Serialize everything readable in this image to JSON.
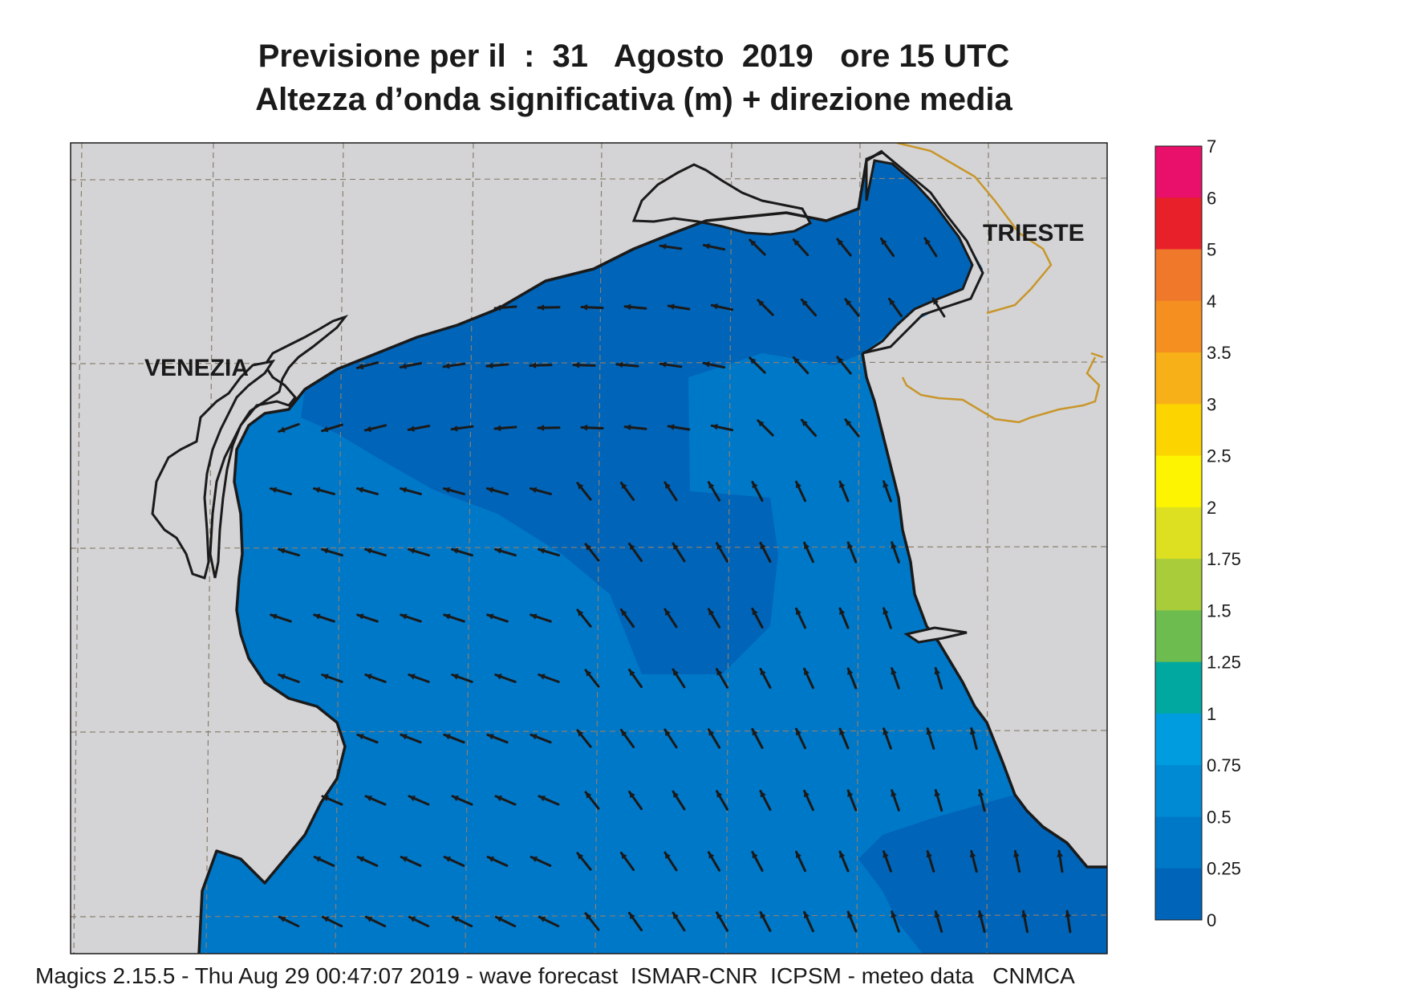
{
  "title": {
    "line1": "Previsione per il  :  31   Agosto  2019   ore 15 UTC",
    "line2": "Altezza d’onda significativa (m) + direzione media"
  },
  "cities": [
    {
      "name": "VENEZIA"
    },
    {
      "name": "TRIESTE"
    }
  ],
  "legend": {
    "labels": [
      "7",
      "6",
      "5",
      "4",
      "3.5",
      "3",
      "2.5",
      "2",
      "1.75",
      "1.5",
      "1.25",
      "1",
      "0.75",
      "0.5",
      "0.25",
      "0"
    ],
    "colors": [
      "#e8106a",
      "#e8202a",
      "#f0782a",
      "#f59020",
      "#f8b018",
      "#fcd400",
      "#fcf400",
      "#dce020",
      "#a8cc3a",
      "#6cbc50",
      "#00a8a0",
      "#009ce0",
      "#008ad4",
      "#0078c8",
      "#0064b8"
    ]
  },
  "footer": "Magics 2.15.5 - Thu Aug 29 00:47:07 2019 - wave forecast  ISMAR-CNR  ICPSM - meteo data   CNMCA",
  "colors": {
    "land": "#d4d4d6",
    "sea_025_05": "#0078c8",
    "sea_0_025": "#0064b8",
    "coastline": "#1a1a1a",
    "border": "#c8962a",
    "grid": "#8a7e6e",
    "arrow": "#1a1a1a"
  }
}
